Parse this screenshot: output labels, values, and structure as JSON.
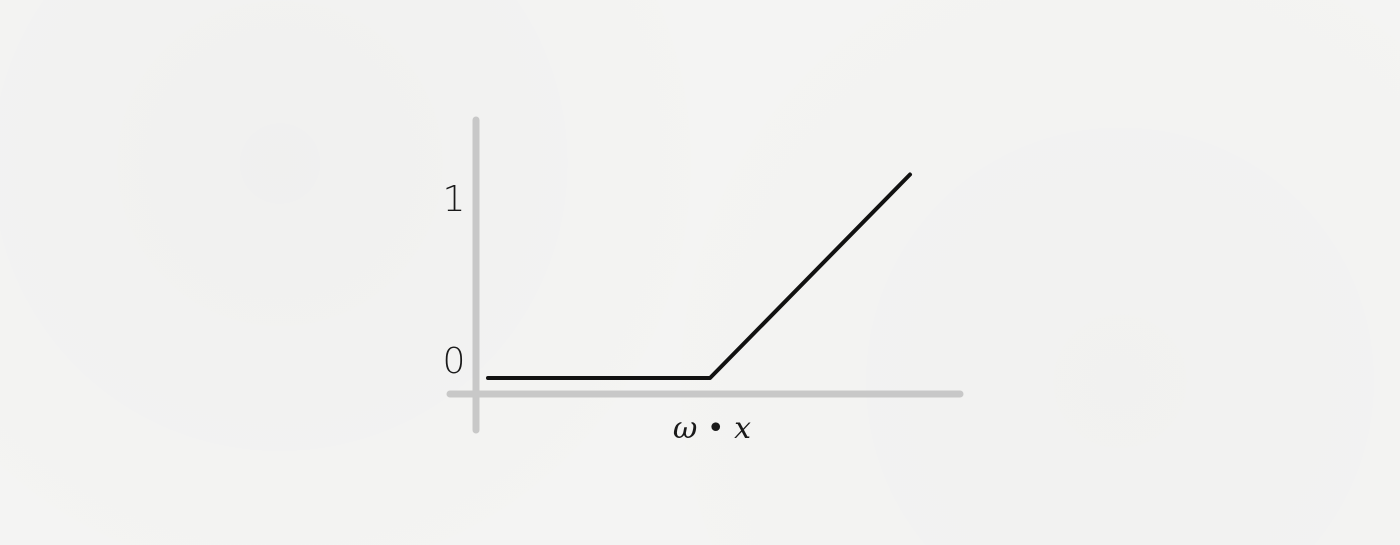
{
  "chart_data": {
    "type": "line",
    "title": "",
    "xlabel": "ω • x",
    "ylabel": "",
    "yticks": [
      {
        "value": 0,
        "label": "0"
      },
      {
        "value": 1,
        "label": "1"
      }
    ],
    "xlim": [
      -1,
      1
    ],
    "ylim": [
      -0.08,
      1.2
    ],
    "grid": false,
    "series": [
      {
        "values": [
          {
            "x": -0.95,
            "y": 0
          },
          {
            "x": 0,
            "y": 0
          },
          {
            "x": 1,
            "y": 1.1
          }
        ]
      }
    ],
    "colors": {
      "axis": "#c8c8c8",
      "line": "#111111",
      "background": "#f4f4f3"
    }
  }
}
